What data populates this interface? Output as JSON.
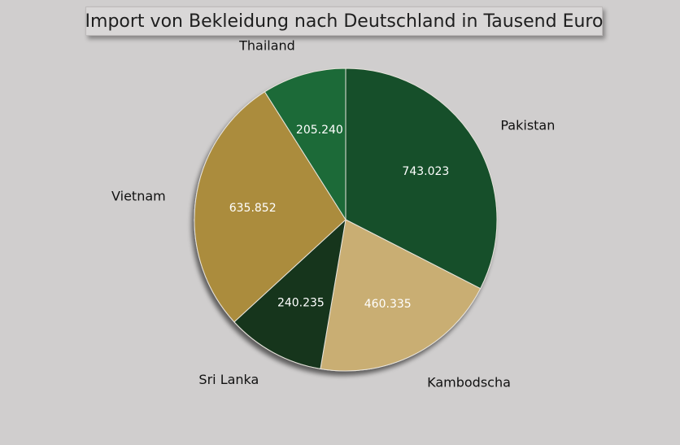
{
  "chart_data": {
    "type": "pie",
    "title": "Import von Bekleidung nach Deutschland in Tausend Euro",
    "categories": [
      "Pakistan",
      "Kambodscha",
      "Sri Lanka",
      "Vietnam",
      "Thailand"
    ],
    "values": [
      743.023,
      460.335,
      240.235,
      635.852,
      205.24
    ],
    "value_labels": [
      "743.023",
      "460.335",
      "240.235",
      "635.852",
      "205.240"
    ],
    "colors": [
      "#124f2b",
      "#c9ae73",
      "#14361f",
      "#ab8c3e",
      "#1a6b37"
    ],
    "legend": "none"
  }
}
